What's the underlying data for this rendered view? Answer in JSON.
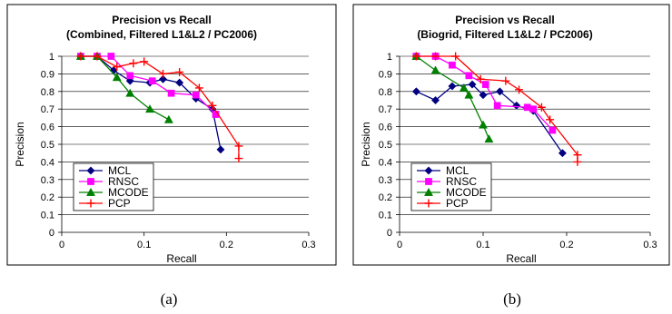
{
  "figure_captions": [
    "(a)",
    "(b)"
  ],
  "chart_data": [
    {
      "type": "line",
      "title": "Precision vs Recall",
      "subtitle": "(Combined, Filtered L1&L2 / PC2006)",
      "xlabel": "Recall",
      "ylabel": "Precision",
      "xlim": [
        0,
        0.3
      ],
      "ylim": [
        0,
        1
      ],
      "x_ticks": [
        "0",
        "0.1",
        "0.2",
        "0.3"
      ],
      "y_ticks": [
        "0",
        "0.1",
        "0.2",
        "0.3",
        "0.4",
        "0.5",
        "0.6",
        "0.7",
        "0.8",
        "0.9",
        "1"
      ],
      "grid": "horizontal",
      "legend": "bottom-left",
      "series": [
        {
          "name": "MCL",
          "color": "#000080",
          "marker": "diamond",
          "x": [
            0.023,
            0.043,
            0.063,
            0.083,
            0.107,
            0.123,
            0.143,
            0.163,
            0.183,
            0.193
          ],
          "y": [
            1.0,
            1.0,
            0.92,
            0.86,
            0.85,
            0.87,
            0.85,
            0.76,
            0.7,
            0.47
          ]
        },
        {
          "name": "RNSC",
          "color": "#ff00ff",
          "marker": "square",
          "x": [
            0.023,
            0.043,
            0.06,
            0.083,
            0.11,
            0.133,
            0.163,
            0.187
          ],
          "y": [
            1.0,
            1.0,
            1.0,
            0.89,
            0.86,
            0.79,
            0.78,
            0.67
          ]
        },
        {
          "name": "MCODE",
          "color": "#008000",
          "marker": "triangle",
          "x": [
            0.023,
            0.043,
            0.067,
            0.083,
            0.107,
            0.13
          ],
          "y": [
            1.0,
            1.0,
            0.88,
            0.79,
            0.7,
            0.64
          ]
        },
        {
          "name": "PCP",
          "color": "#ff0000",
          "marker": "plus",
          "x": [
            0.023,
            0.043,
            0.067,
            0.087,
            0.1,
            0.123,
            0.143,
            0.167,
            0.183,
            0.215,
            0.215
          ],
          "y": [
            1.0,
            1.0,
            0.94,
            0.96,
            0.97,
            0.9,
            0.91,
            0.82,
            0.72,
            0.49,
            0.42
          ]
        }
      ]
    },
    {
      "type": "line",
      "title": "Precision vs Recall",
      "subtitle": "(Biogrid, Filtered L1&L2 / PC2006)",
      "xlabel": "Recall",
      "ylabel": "Precision",
      "xlim": [
        0,
        0.3
      ],
      "ylim": [
        0,
        1
      ],
      "x_ticks": [
        "0",
        "0.1",
        "0.2",
        "0.3"
      ],
      "y_ticks": [
        "0",
        "0.1",
        "0.2",
        "0.3",
        "0.4",
        "0.5",
        "0.6",
        "0.7",
        "0.8",
        "0.9",
        "1"
      ],
      "grid": "horizontal",
      "legend": "bottom-left",
      "series": [
        {
          "name": "MCL",
          "color": "#000080",
          "marker": "diamond",
          "x": [
            0.02,
            0.043,
            0.063,
            0.087,
            0.1,
            0.12,
            0.14,
            0.16,
            0.195
          ],
          "y": [
            0.8,
            0.75,
            0.83,
            0.84,
            0.78,
            0.8,
            0.72,
            0.69,
            0.45
          ]
        },
        {
          "name": "RNSC",
          "color": "#ff00ff",
          "marker": "square",
          "x": [
            0.02,
            0.043,
            0.063,
            0.083,
            0.103,
            0.117,
            0.153,
            0.16,
            0.183
          ],
          "y": [
            1.0,
            1.0,
            0.95,
            0.89,
            0.84,
            0.72,
            0.71,
            0.7,
            0.58
          ]
        },
        {
          "name": "MCODE",
          "color": "#008000",
          "marker": "triangle",
          "x": [
            0.02,
            0.043,
            0.077,
            0.083,
            0.1,
            0.107
          ],
          "y": [
            1.0,
            0.92,
            0.82,
            0.78,
            0.61,
            0.53
          ]
        },
        {
          "name": "PCP",
          "color": "#ff0000",
          "marker": "plus",
          "x": [
            0.02,
            0.043,
            0.067,
            0.097,
            0.127,
            0.143,
            0.17,
            0.18,
            0.213,
            0.213
          ],
          "y": [
            1.0,
            1.0,
            1.0,
            0.87,
            0.86,
            0.81,
            0.71,
            0.64,
            0.44,
            0.4
          ]
        }
      ]
    }
  ]
}
